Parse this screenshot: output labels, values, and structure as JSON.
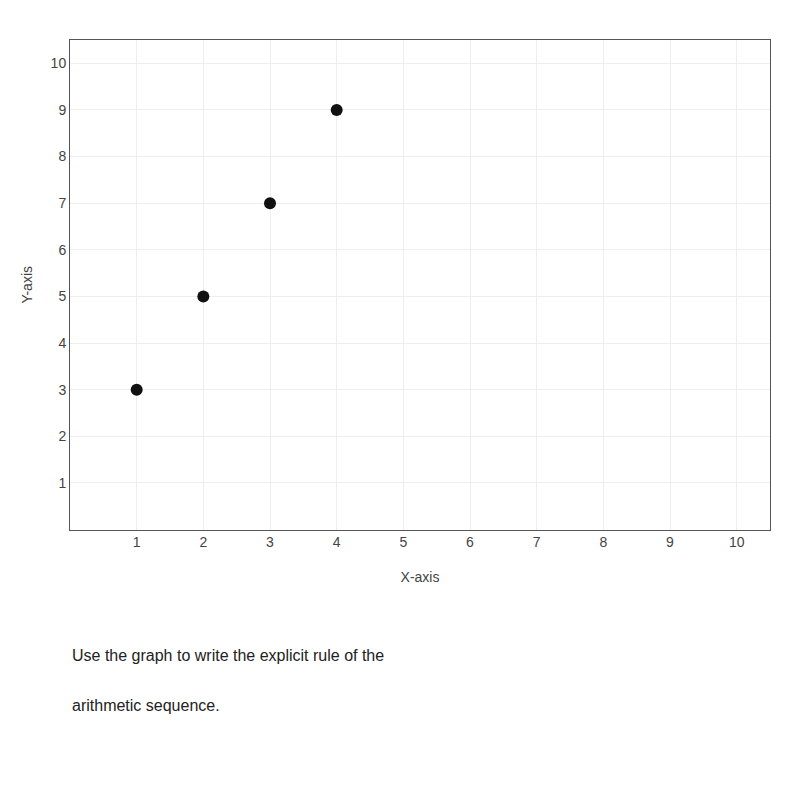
{
  "chart_data": {
    "type": "scatter",
    "x": [
      1,
      2,
      3,
      4
    ],
    "values": [
      3,
      5,
      7,
      9
    ],
    "xlabel": "X-axis",
    "ylabel": "Y-axis",
    "color": "#111111",
    "xlim": [
      0,
      10.5
    ],
    "ylim": [
      0,
      10.5
    ],
    "xticks": [
      1,
      2,
      3,
      4,
      5,
      6,
      7,
      8,
      9,
      10
    ],
    "yticks": [
      1,
      2,
      3,
      4,
      5,
      6,
      7,
      8,
      9,
      10
    ],
    "grid": true,
    "annotations": [
      "Use the graph to write the explicit rule of the",
      "arithmetic sequence."
    ]
  }
}
